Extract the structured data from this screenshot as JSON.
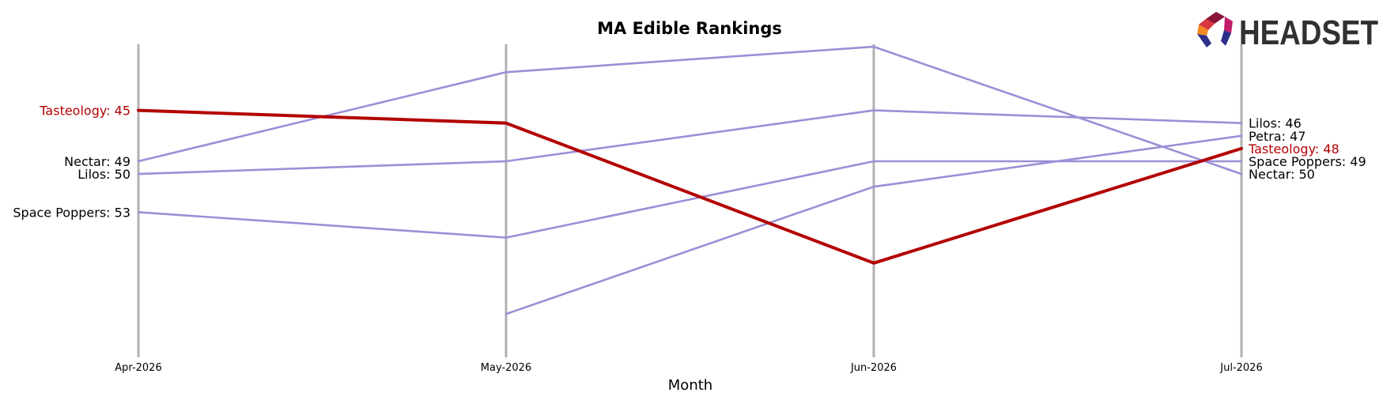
{
  "chart_data": {
    "type": "line",
    "title": "MA Edible Rankings",
    "xlabel": "Month",
    "ylabel": "",
    "x": [
      "Apr-2026",
      "May-2026",
      "Jun-2026",
      "Jul-2026"
    ],
    "ylim": [
      41,
      66
    ],
    "y_inverted": true,
    "grid": "vertical lines at each month",
    "series": [
      {
        "name": "Tasteology",
        "highlight": true,
        "color": "#b30000",
        "values": [
          45,
          46,
          57,
          48
        ],
        "start_label": "Tasteology: 45",
        "end_label": "Tasteology: 48"
      },
      {
        "name": "Nectar",
        "color": "#9b8fd6",
        "values": [
          49,
          42,
          40,
          50
        ],
        "start_label": "Nectar: 49",
        "end_label": "Nectar: 50"
      },
      {
        "name": "Lilos",
        "color": "#9b8fd6",
        "values": [
          50,
          49,
          45,
          46
        ],
        "start_label": "Lilos: 50",
        "end_label": "Lilos: 46"
      },
      {
        "name": "Space Poppers",
        "color": "#9b8fd6",
        "values": [
          53,
          55,
          49,
          49
        ],
        "start_label": "Space Poppers: 53",
        "end_label": "Space Poppers: 49"
      },
      {
        "name": "Petra",
        "color": "#9b8fd6",
        "values": [
          null,
          61,
          51,
          47
        ],
        "start_label": "",
        "end_label": "Petra: 47"
      }
    ]
  },
  "logo": {
    "text": "HEADSET"
  },
  "colors": {
    "highlight": "#b30000",
    "other": "#9b8fd6",
    "gridline": "#b0b0b0",
    "label_default": "#000000"
  }
}
